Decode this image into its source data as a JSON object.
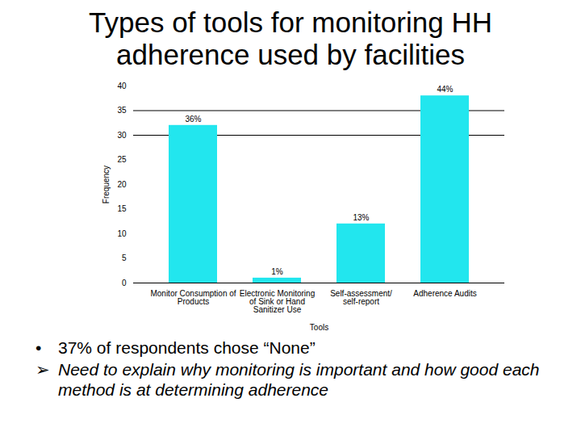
{
  "chart_data": {
    "type": "bar",
    "title": "Types of tools for monitoring HH adherence used by facilities",
    "categories": [
      "Monitor Consumption of Products",
      "Electronic Monitoring of Sink or Hand Sanitizer Use",
      "Self-assessment/ self-report",
      "Adherence Audits"
    ],
    "values": [
      32,
      1,
      12,
      38
    ],
    "percent_labels": [
      "36%",
      "1%",
      "13%",
      "44%"
    ],
    "color": "#22e6ee",
    "x_label": "Tools",
    "y_label": "Frequency",
    "ylim": [
      0,
      40
    ],
    "yticks": [
      0,
      5,
      10,
      15,
      20,
      25,
      30,
      35,
      40
    ],
    "grid_lines": [
      30,
      35
    ]
  },
  "bullets": [
    "37% of respondents chose “None”",
    "Need to explain why monitoring is important and how good each method is at determining adherence"
  ]
}
